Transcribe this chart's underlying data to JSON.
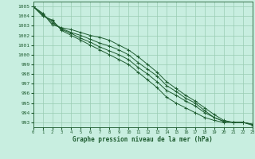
{
  "title": "Graphe pression niveau de la mer (hPa)",
  "bg_color": "#c8eee0",
  "grid_color": "#99ccb3",
  "line_color": "#1e5c30",
  "xlim": [
    0,
    23
  ],
  "ylim": [
    992.5,
    1005.5
  ],
  "yticks": [
    993,
    994,
    995,
    996,
    997,
    998,
    999,
    1000,
    1001,
    1002,
    1003,
    1004,
    1005
  ],
  "xticks": [
    0,
    1,
    2,
    3,
    4,
    5,
    6,
    7,
    8,
    9,
    10,
    11,
    12,
    13,
    14,
    15,
    16,
    17,
    18,
    19,
    20,
    21,
    22,
    23
  ],
  "series": [
    [
      1005.0,
      1004.3,
      1003.1,
      1002.8,
      1002.6,
      1002.3,
      1002.0,
      1001.8,
      1001.5,
      1001.0,
      1000.5,
      999.8,
      999.0,
      998.2,
      997.2,
      996.5,
      995.8,
      995.2,
      994.5,
      993.8,
      993.2,
      993.0,
      993.0,
      992.8
    ],
    [
      1005.0,
      1004.2,
      1003.3,
      1002.7,
      1002.3,
      1002.0,
      1001.6,
      1001.2,
      1000.9,
      1000.5,
      1000.0,
      999.2,
      998.5,
      997.8,
      996.8,
      996.2,
      995.5,
      995.0,
      994.2,
      993.5,
      993.1,
      993.0,
      993.0,
      992.8
    ],
    [
      1005.0,
      1004.1,
      1003.5,
      1002.6,
      1002.2,
      1001.7,
      1001.3,
      1000.8,
      1000.4,
      1000.0,
      999.5,
      998.7,
      998.0,
      997.2,
      996.3,
      995.8,
      995.2,
      994.7,
      994.0,
      993.5,
      993.1,
      993.0,
      993.0,
      992.8
    ],
    [
      1005.0,
      1004.0,
      1003.6,
      1002.5,
      1002.0,
      1001.5,
      1001.0,
      1000.5,
      1000.0,
      999.5,
      999.0,
      998.2,
      997.4,
      996.6,
      995.6,
      995.0,
      994.5,
      994.0,
      993.5,
      993.2,
      993.0,
      993.0,
      993.0,
      992.7
    ]
  ]
}
